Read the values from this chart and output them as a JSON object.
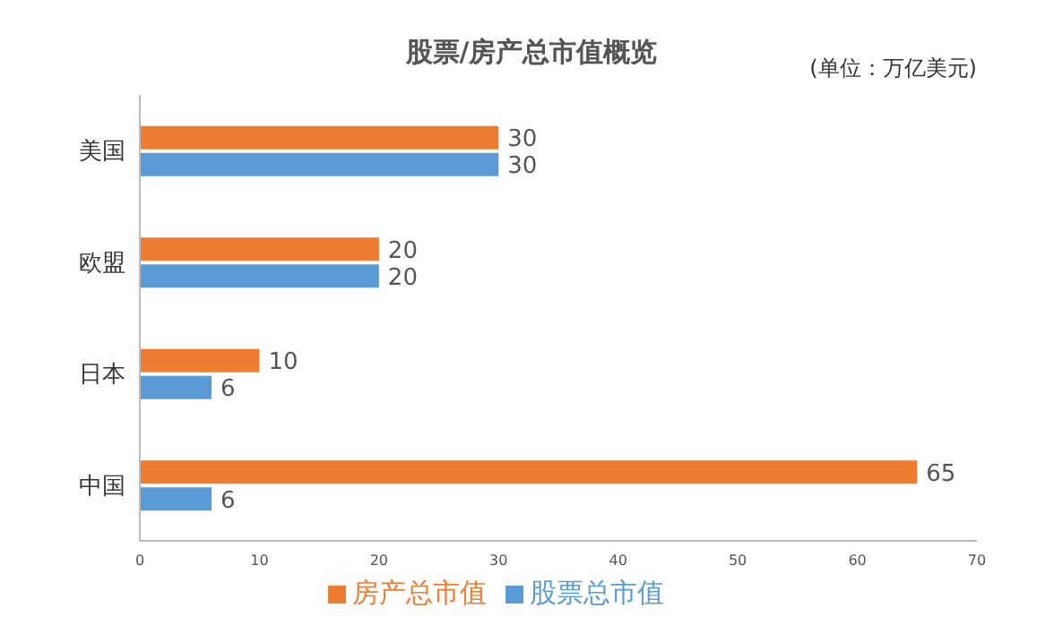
{
  "chart_data": {
    "type": "bar",
    "orientation": "horizontal",
    "title": "股票/房产总市值概览",
    "annotations": [
      "(单位：万亿美元)"
    ],
    "categories": [
      "美国",
      "欧盟",
      "日本",
      "中国"
    ],
    "series": [
      {
        "name": "房产总市值",
        "color": "#ed7d31",
        "values": [
          30,
          20,
          10,
          65
        ]
      },
      {
        "name": "股票总市值",
        "color": "#5b9bd5",
        "values": [
          30,
          20,
          6,
          6
        ]
      }
    ],
    "xlim": [
      0,
      70
    ],
    "xticks": [
      0,
      10,
      20,
      30,
      40,
      50,
      60,
      70
    ],
    "grid": false,
    "data_labels": true,
    "legend": "bottom"
  }
}
